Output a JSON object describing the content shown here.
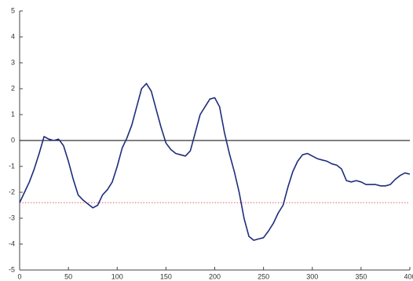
{
  "chart_data": {
    "type": "line",
    "x": [
      0,
      5,
      10,
      15,
      20,
      25,
      30,
      35,
      40,
      45,
      50,
      55,
      60,
      65,
      70,
      75,
      80,
      85,
      90,
      95,
      100,
      105,
      110,
      115,
      120,
      125,
      130,
      135,
      140,
      145,
      150,
      155,
      160,
      165,
      170,
      175,
      180,
      185,
      190,
      195,
      200,
      205,
      210,
      215,
      220,
      225,
      230,
      235,
      240,
      245,
      250,
      255,
      260,
      265,
      270,
      275,
      280,
      285,
      290,
      295,
      300,
      305,
      310,
      315,
      320,
      325,
      330,
      335,
      340,
      345,
      350,
      355,
      360,
      365,
      370,
      375,
      380,
      385,
      390,
      395,
      400
    ],
    "series": [
      {
        "color": "#1f2d7a",
        "values": [
          -2.4,
          -2.0,
          -1.6,
          -1.1,
          -0.5,
          0.15,
          0.05,
          0.0,
          0.05,
          -0.2,
          -0.8,
          -1.5,
          -2.1,
          -2.3,
          -2.45,
          -2.6,
          -2.5,
          -2.1,
          -1.9,
          -1.6,
          -1.0,
          -0.3,
          0.1,
          0.6,
          1.3,
          2.0,
          2.2,
          1.9,
          1.2,
          0.5,
          -0.1,
          -0.35,
          -0.5,
          -0.55,
          -0.6,
          -0.4,
          0.3,
          1.0,
          1.3,
          1.6,
          1.65,
          1.3,
          0.3,
          -0.5,
          -1.2,
          -2.0,
          -3.0,
          -3.7,
          -3.85,
          -3.8,
          -3.75,
          -3.5,
          -3.2,
          -2.8,
          -2.5,
          -1.8,
          -1.2,
          -0.8,
          -0.55,
          -0.5,
          -0.6,
          -0.7,
          -0.75,
          -0.8,
          -0.9,
          -0.95,
          -1.1,
          -1.55,
          -1.6,
          -1.55,
          -1.6,
          -1.7,
          -1.7,
          -1.7,
          -1.75,
          -1.75,
          -1.7,
          -1.5,
          -1.35,
          -1.25,
          -1.3
        ]
      }
    ],
    "reference_lines": [
      {
        "value": 0,
        "color": "#000000",
        "style": "solid"
      },
      {
        "value": -2.4,
        "color": "#e06666",
        "style": "dotted"
      }
    ],
    "xlim": [
      0,
      400
    ],
    "xticks": [
      0,
      50,
      100,
      150,
      200,
      250,
      300,
      350,
      400
    ],
    "ylim": [
      -5,
      5
    ],
    "yticks": [
      -5,
      -4,
      -3,
      -2,
      -1,
      0,
      1,
      2,
      3,
      4,
      5
    ]
  }
}
